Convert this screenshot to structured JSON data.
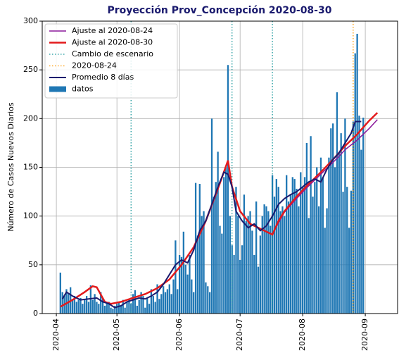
{
  "chart_data": {
    "type": "bar",
    "title": "Proyección Prov_Concepción 2020-08-30",
    "ylabel": "Número de Casos Nuevos Diarios",
    "xlim": [
      85,
      261
    ],
    "ylim": [
      0,
      300
    ],
    "xticks": [
      {
        "value": 92,
        "label": "2020-04"
      },
      {
        "value": 122,
        "label": "2020-05"
      },
      {
        "value": 153,
        "label": "2020-06"
      },
      {
        "value": 183,
        "label": "2020-07"
      },
      {
        "value": 214,
        "label": "2020-08"
      },
      {
        "value": 245,
        "label": "2020-09"
      }
    ],
    "yticks": [
      0,
      50,
      100,
      150,
      200,
      250,
      300
    ],
    "grid": true,
    "legend": "upper left",
    "bars": {
      "name": "datos",
      "color": "#1f77b4",
      "x": [
        94,
        95,
        96,
        97,
        98,
        99,
        100,
        101,
        102,
        103,
        104,
        105,
        106,
        107,
        108,
        109,
        110,
        111,
        112,
        113,
        114,
        115,
        116,
        117,
        118,
        119,
        120,
        121,
        122,
        123,
        124,
        125,
        126,
        127,
        128,
        129,
        130,
        131,
        132,
        133,
        134,
        135,
        136,
        137,
        138,
        139,
        140,
        141,
        142,
        143,
        144,
        145,
        146,
        147,
        148,
        149,
        150,
        151,
        152,
        153,
        154,
        155,
        156,
        157,
        158,
        159,
        160,
        161,
        162,
        163,
        164,
        165,
        166,
        167,
        168,
        169,
        170,
        171,
        172,
        173,
        174,
        175,
        176,
        177,
        178,
        179,
        180,
        181,
        182,
        183,
        184,
        185,
        186,
        187,
        188,
        189,
        190,
        191,
        192,
        193,
        194,
        195,
        196,
        197,
        198,
        199,
        200,
        201,
        202,
        203,
        204,
        205,
        206,
        207,
        208,
        209,
        210,
        211,
        212,
        213,
        214,
        215,
        216,
        217,
        218,
        219,
        220,
        221,
        222,
        223,
        224,
        225,
        226,
        227,
        228,
        229,
        230,
        231,
        232,
        233,
        234,
        235,
        236,
        237,
        238,
        239,
        240,
        241,
        242,
        243,
        244
      ],
      "values": [
        42,
        22,
        18,
        25,
        20,
        27,
        15,
        18,
        12,
        14,
        16,
        10,
        15,
        18,
        12,
        29,
        14,
        20,
        12,
        10,
        22,
        15,
        8,
        10,
        12,
        6,
        5,
        8,
        10,
        12,
        8,
        14,
        6,
        12,
        15,
        10,
        20,
        24,
        8,
        14,
        22,
        18,
        6,
        16,
        10,
        25,
        18,
        12,
        30,
        15,
        20,
        28,
        22,
        25,
        30,
        20,
        35,
        75,
        25,
        60,
        58,
        84,
        50,
        40,
        60,
        35,
        22,
        134,
        80,
        133,
        100,
        105,
        32,
        28,
        22,
        200,
        120,
        135,
        166,
        90,
        82,
        140,
        150,
        255,
        100,
        70,
        60,
        130,
        100,
        55,
        70,
        122,
        95,
        100,
        105,
        85,
        60,
        115,
        48,
        80,
        100,
        112,
        110,
        105,
        90,
        142,
        120,
        138,
        130,
        105,
        110,
        100,
        142,
        115,
        122,
        140,
        138,
        128,
        110,
        145,
        130,
        140,
        175,
        98,
        182,
        120,
        135,
        150,
        110,
        160,
        140,
        88,
        108,
        160,
        190,
        195,
        150,
        227,
        165,
        185,
        125,
        200,
        130,
        88,
        126,
        197,
        267,
        287,
        203,
        168,
        201
      ]
    },
    "series": [
      {
        "name": "Ajuste al 2020-08-24",
        "color": "#8b1a9b",
        "x": [
          199,
          205,
          211,
          217,
          223,
          229,
          235,
          241,
          247,
          251
        ],
        "values": [
          82,
          104,
          118,
          131,
          143,
          155,
          168,
          178,
          190,
          199
        ]
      },
      {
        "name": "Ajuste al 2020-08-30",
        "color": "#e31a1c",
        "x": [
          94,
          100,
          106,
          110,
          112,
          116,
          119,
          124,
          130,
          136,
          142,
          148,
          154,
          160,
          166,
          172,
          177,
          179,
          183,
          188,
          193,
          199,
          202,
          205,
          211,
          217,
          223,
          229,
          235,
          241,
          247,
          251
        ],
        "values": [
          7,
          14,
          22,
          28,
          27,
          12,
          10,
          12,
          16,
          20,
          26,
          35,
          50,
          68,
          95,
          128,
          157,
          130,
          105,
          92,
          87,
          81,
          95,
          105,
          120,
          133,
          145,
          158,
          172,
          184,
          198,
          206
        ]
      },
      {
        "name": "Promedio 8 días",
        "color": "#1a1a6e",
        "x": [
          95,
          97,
          100,
          104,
          108,
          112,
          115,
          118,
          121,
          124,
          127,
          130,
          133,
          136,
          139,
          142,
          145,
          148,
          151,
          154,
          157,
          160,
          163,
          166,
          169,
          172,
          175,
          177,
          179,
          181,
          184,
          187,
          190,
          193,
          196,
          199,
          202,
          205,
          208,
          211,
          214,
          217,
          220,
          223,
          226,
          229,
          232,
          235,
          238,
          240,
          243
        ],
        "values": [
          15,
          22,
          18,
          14,
          15,
          16,
          12,
          10,
          6,
          8,
          12,
          14,
          16,
          15,
          18,
          22,
          30,
          40,
          50,
          55,
          52,
          65,
          85,
          95,
          112,
          130,
          145,
          143,
          130,
          105,
          95,
          88,
          92,
          85,
          90,
          100,
          112,
          118,
          122,
          125,
          130,
          135,
          138,
          135,
          148,
          158,
          165,
          175,
          185,
          197,
          197
        ]
      }
    ],
    "vlines": [
      {
        "name": "Cambio de escenario",
        "color": "#17979a",
        "x": [
          129,
          179,
          199
        ]
      },
      {
        "name": "2020-08-24",
        "color": "#ff9900",
        "x": [
          239
        ]
      }
    ]
  }
}
